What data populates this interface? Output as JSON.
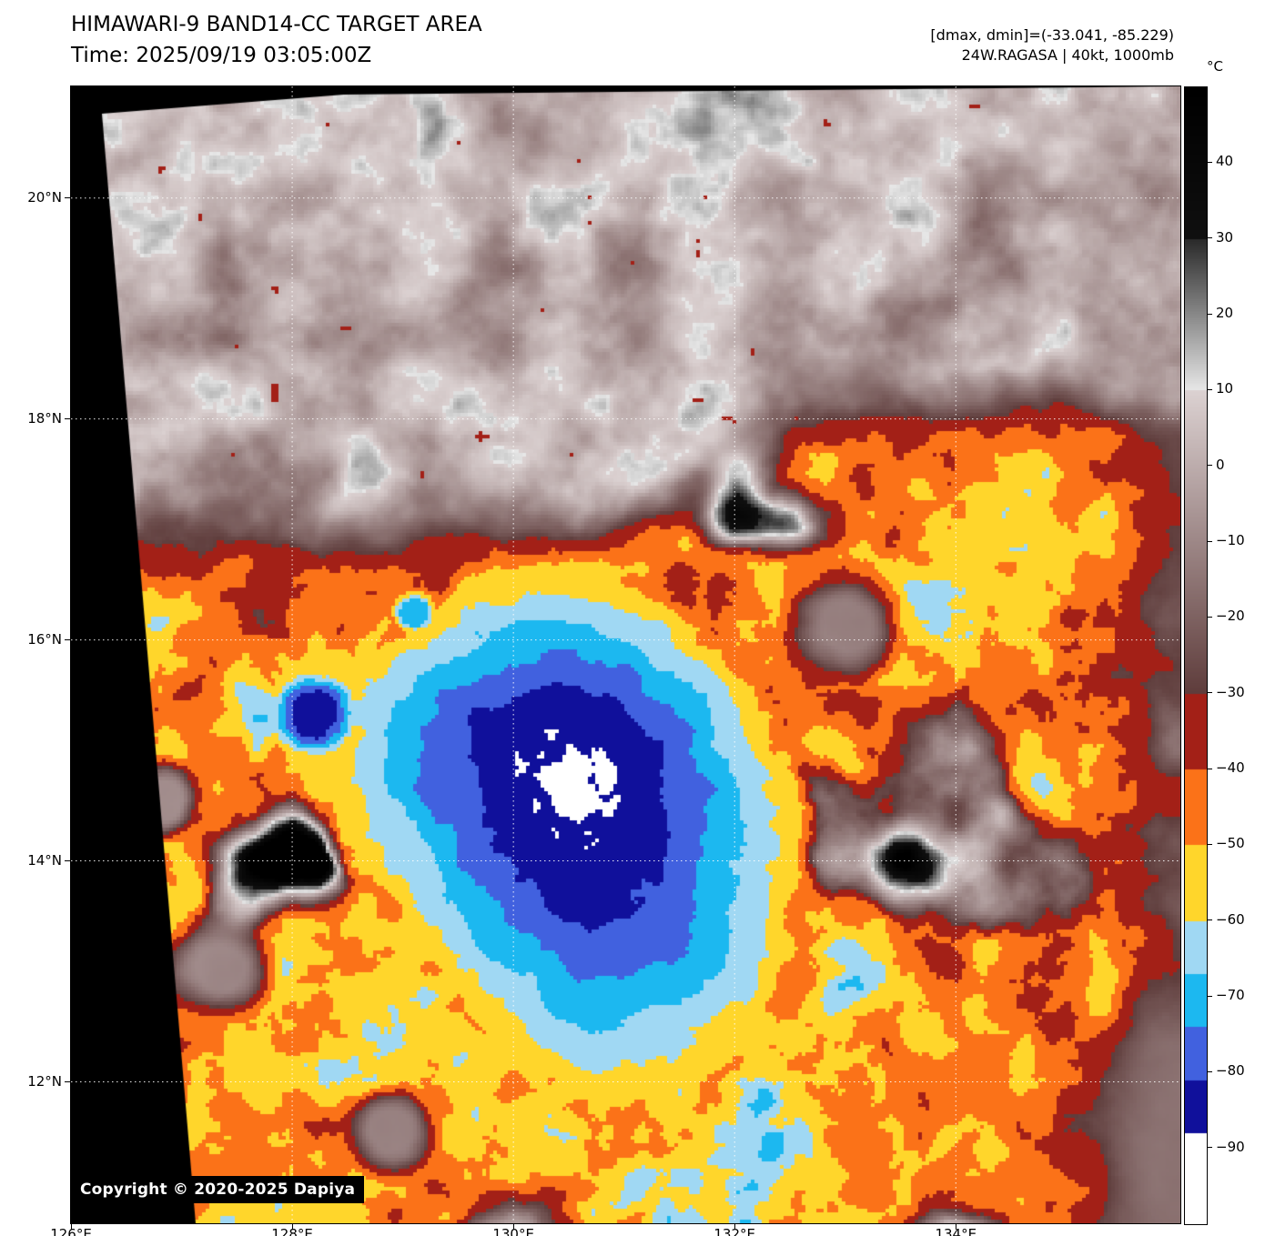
{
  "header": {
    "title_line1": "HIMAWARI-9 BAND14-CC TARGET AREA",
    "title_line2": "Time: 2025/09/19 03:05:00Z",
    "info_line1": "[dmax, dmin]=(-33.041, -85.229)",
    "info_line2": "24W.RAGASA | 40kt, 1000mb"
  },
  "axes": {
    "lon_min": 126.0,
    "lon_max": 136.03,
    "lat_min": 10.72,
    "lat_max": 21.01,
    "lon_ticks": [
      {
        "value": 126,
        "label": "126°E"
      },
      {
        "value": 128,
        "label": "128°E"
      },
      {
        "value": 130,
        "label": "130°E"
      },
      {
        "value": 132,
        "label": "132°E"
      },
      {
        "value": 134,
        "label": "134°E"
      }
    ],
    "lat_ticks": [
      {
        "value": 20,
        "label": "20°N"
      },
      {
        "value": 18,
        "label": "18°N"
      },
      {
        "value": 16,
        "label": "16°N"
      },
      {
        "value": 14,
        "label": "14°N"
      },
      {
        "value": 12,
        "label": "12°N"
      }
    ],
    "grid_lons": [
      128,
      130,
      132,
      134
    ],
    "grid_lats": [
      12,
      14,
      16,
      18,
      20
    ]
  },
  "colorbar": {
    "unit": "°C",
    "top_value": 50,
    "bottom_value": -100,
    "ticks": [
      {
        "value": 40,
        "label": "40"
      },
      {
        "value": 30,
        "label": "30"
      },
      {
        "value": 20,
        "label": "20"
      },
      {
        "value": 10,
        "label": "10"
      },
      {
        "value": 0,
        "label": "0"
      },
      {
        "value": -10,
        "label": "−10"
      },
      {
        "value": -20,
        "label": "−20"
      },
      {
        "value": -30,
        "label": "−30"
      },
      {
        "value": -40,
        "label": "−40"
      },
      {
        "value": -50,
        "label": "−50"
      },
      {
        "value": -60,
        "label": "−60"
      },
      {
        "value": -70,
        "label": "−70"
      },
      {
        "value": -80,
        "label": "−80"
      },
      {
        "value": -90,
        "label": "−90"
      }
    ],
    "palette": [
      {
        "from": 50,
        "to": 30,
        "c1": "#000000",
        "c2": "#101010"
      },
      {
        "from": 30,
        "to": 10,
        "c1": "#2a2a2a",
        "c2": "#e8e8e8"
      },
      {
        "from": 10,
        "to": -30,
        "c1": "#dcd2d2",
        "c2": "#5f3d3c"
      },
      {
        "from": -30,
        "to": -40,
        "c1": "#a32017",
        "c2": "#a32017"
      },
      {
        "from": -40,
        "to": -50,
        "c1": "#fb7218",
        "c2": "#fb7218"
      },
      {
        "from": -50,
        "to": -60,
        "c1": "#ffd62b",
        "c2": "#ffd62b"
      },
      {
        "from": -60,
        "to": -67,
        "c1": "#a0d8f3",
        "c2": "#a0d8f3"
      },
      {
        "from": -67,
        "to": -74,
        "c1": "#1cb8f0",
        "c2": "#1cb8f0"
      },
      {
        "from": -74,
        "to": -81,
        "c1": "#4161df",
        "c2": "#4161df"
      },
      {
        "from": -81,
        "to": -88,
        "c1": "#10109b",
        "c2": "#10109b"
      },
      {
        "from": -88,
        "to": -100,
        "c1": "#ffffff",
        "c2": "#ffffff"
      }
    ]
  },
  "overlay": {
    "copyright": "Copyright © 2020-2025 Dapiya"
  },
  "scene": {
    "storm": {
      "designation": "24W",
      "name": "RAGASA",
      "center_lon": 130.5,
      "center_lat": 14.72
    },
    "cold_cells": [
      {
        "lon": 128.2,
        "lat": 15.33,
        "radius": 0.3,
        "t": -86
      },
      {
        "lon": 129.1,
        "lat": 16.26,
        "radius": 0.17,
        "t": -74
      }
    ],
    "warm_patches": [
      {
        "lon": 133.01,
        "lat": 16.11,
        "radius": 0.42,
        "t": -8
      },
      {
        "lon": 126.84,
        "lat": 14.55,
        "radius": 0.28,
        "t": -4
      },
      {
        "lon": 127.37,
        "lat": 13.03,
        "radius": 0.38,
        "t": -6
      },
      {
        "lon": 128.9,
        "lat": 11.54,
        "radius": 0.33,
        "t": -8
      }
    ]
  }
}
